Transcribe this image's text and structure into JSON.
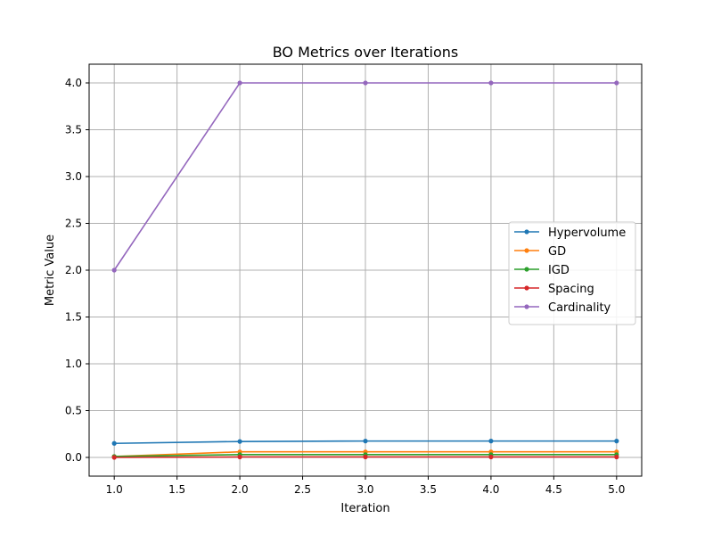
{
  "chart_data": {
    "type": "line",
    "title": "BO Metrics over Iterations",
    "xlabel": "Iteration",
    "ylabel": "Metric Value",
    "xlim": [
      0.8,
      5.2
    ],
    "ylim": [
      -0.2,
      4.2
    ],
    "xticks": [
      "1.0",
      "1.5",
      "2.0",
      "2.5",
      "3.0",
      "3.5",
      "4.0",
      "4.5",
      "5.0"
    ],
    "yticks": [
      "0.0",
      "0.5",
      "1.0",
      "1.5",
      "2.0",
      "2.5",
      "3.0",
      "3.5",
      "4.0"
    ],
    "grid": true,
    "legend_position": "center-right",
    "x": [
      1,
      2,
      3,
      4,
      5
    ],
    "series": [
      {
        "name": "Hypervolume",
        "color": "#1f77b4",
        "values": [
          0.15,
          0.17,
          0.175,
          0.175,
          0.175
        ]
      },
      {
        "name": "GD",
        "color": "#ff7f0e",
        "values": [
          0.01,
          0.06,
          0.06,
          0.06,
          0.06
        ]
      },
      {
        "name": "IGD",
        "color": "#2ca02c",
        "values": [
          0.01,
          0.03,
          0.03,
          0.03,
          0.03
        ]
      },
      {
        "name": "Spacing",
        "color": "#d62728",
        "values": [
          0.0,
          0.005,
          0.005,
          0.005,
          0.005
        ]
      },
      {
        "name": "Cardinality",
        "color": "#9467bd",
        "values": [
          2,
          4,
          4,
          4,
          4
        ]
      }
    ]
  }
}
